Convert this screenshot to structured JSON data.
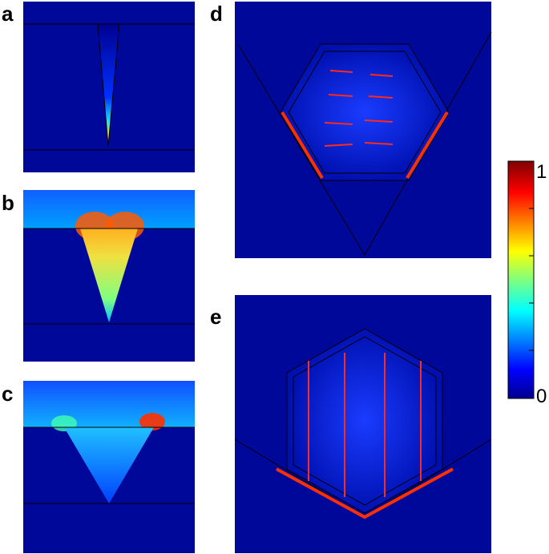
{
  "panels": [
    {
      "label": "a"
    },
    {
      "label": "b"
    },
    {
      "label": "c"
    },
    {
      "label": "d"
    },
    {
      "label": "e"
    }
  ],
  "colorbar": {
    "max_label": "1",
    "min_label": "0"
  }
}
